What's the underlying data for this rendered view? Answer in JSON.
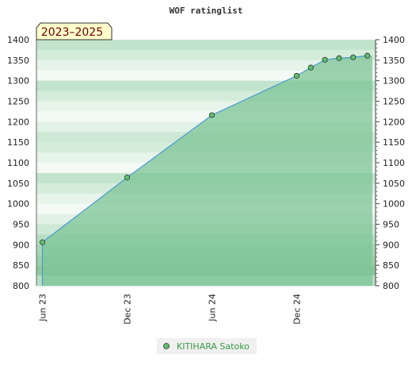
{
  "chart_data": {
    "type": "area",
    "title": "WOF ratinglist",
    "badge": "2023–2025",
    "x_ticks": [
      "Jun 23",
      "Dec 23",
      "Jun 24",
      "Dec 24"
    ],
    "y_ticks": [
      800,
      850,
      900,
      950,
      1000,
      1050,
      1100,
      1150,
      1200,
      1250,
      1300,
      1350,
      1400
    ],
    "ylim": [
      800,
      1400
    ],
    "xlim": [
      "2023-06",
      "2025-05"
    ],
    "grid": "horizontal bands",
    "legend_position": "bottom",
    "series": [
      {
        "name": "KITIHARA Satoko",
        "color": "#4d9bd4",
        "fill": "#7cc496",
        "marker_color": "#5fbf6e",
        "x": [
          "2023-06",
          "2023-12",
          "2024-06",
          "2024-12",
          "2025-01",
          "2025-02",
          "2025-03",
          "2025-04",
          "2025-05"
        ],
        "y": [
          906,
          1064,
          1216,
          1312,
          1332,
          1351,
          1355,
          1357,
          1361
        ]
      }
    ]
  }
}
